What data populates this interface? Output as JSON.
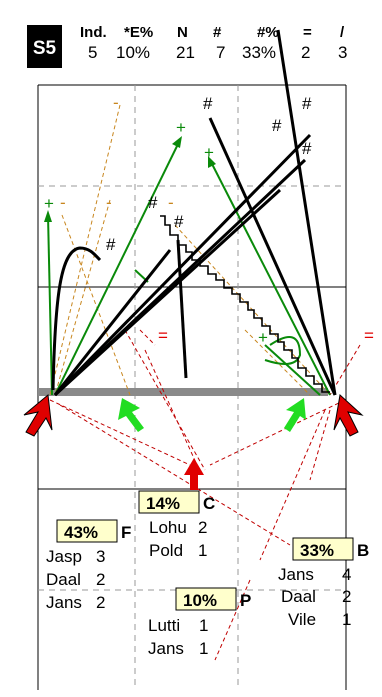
{
  "badge": "S5",
  "stats": {
    "headers": [
      "Ind.",
      "*E%",
      "N",
      "#",
      "#%",
      "=",
      "/"
    ],
    "values": [
      "5",
      "10%",
      "21",
      "7",
      "33%",
      "2",
      "3"
    ]
  },
  "groups": {
    "C": {
      "pct": "14%",
      "letter": "C",
      "names": [
        "Lohu",
        "Pold"
      ],
      "counts": [
        "2",
        "1"
      ]
    },
    "F": {
      "pct": "43%",
      "letter": "F",
      "names": [
        "Jasp",
        "Daal",
        "Jans"
      ],
      "counts": [
        "3",
        "2",
        "2"
      ]
    },
    "B": {
      "pct": "33%",
      "letter": "B",
      "names": [
        "Jans",
        "Daal",
        "Vile"
      ],
      "counts": [
        "4",
        "2",
        "1"
      ]
    },
    "P": {
      "pct": "10%",
      "letter": "P",
      "names": [
        "Lutti",
        "Jans"
      ],
      "counts": [
        "1",
        "1"
      ]
    }
  },
  "markers": {
    "hash": "#",
    "plus": "+",
    "minus": "-",
    "equals": "="
  },
  "colors": {
    "green": "#0a8a0a",
    "red": "#e00000",
    "dashed_orange": "#c8861e",
    "dashed_red": "#c00000",
    "label_bg": "#ffffcc"
  }
}
